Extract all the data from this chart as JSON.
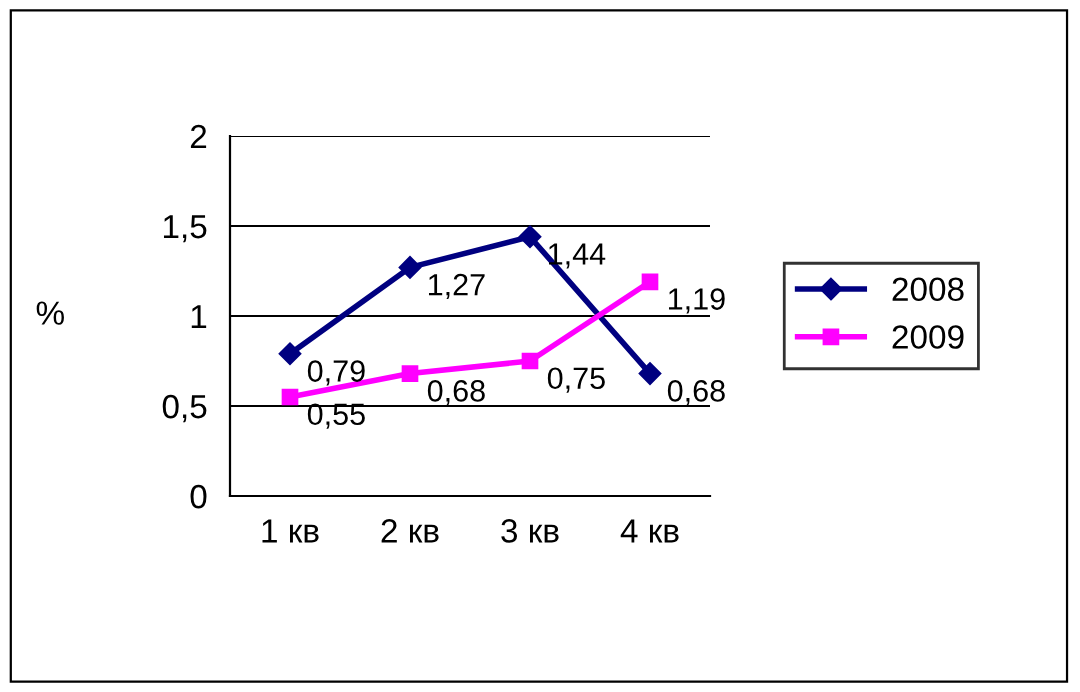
{
  "chart_data": {
    "type": "line",
    "ylabel": "%",
    "categories": [
      "1 кв",
      "2 кв",
      "3 кв",
      "4 кв"
    ],
    "series": [
      {
        "name": "2008",
        "color": "#000080",
        "marker": "diamond",
        "values": [
          0.79,
          1.27,
          1.44,
          0.68
        ],
        "value_labels": [
          "0,79",
          "1,27",
          "1,44",
          "0,68"
        ]
      },
      {
        "name": "2009",
        "color": "#ff00ff",
        "marker": "square",
        "values": [
          0.55,
          0.68,
          0.75,
          1.19
        ],
        "value_labels": [
          "0,55",
          "0,68",
          "0,75",
          "1,19"
        ]
      }
    ],
    "ylim": [
      0,
      2
    ],
    "yticks": [
      0,
      {
        "value": 0.5,
        "label": "0,5"
      },
      1,
      {
        "value": 1.5,
        "label": "1,5"
      },
      2
    ],
    "grid": "y",
    "legend": "right"
  }
}
